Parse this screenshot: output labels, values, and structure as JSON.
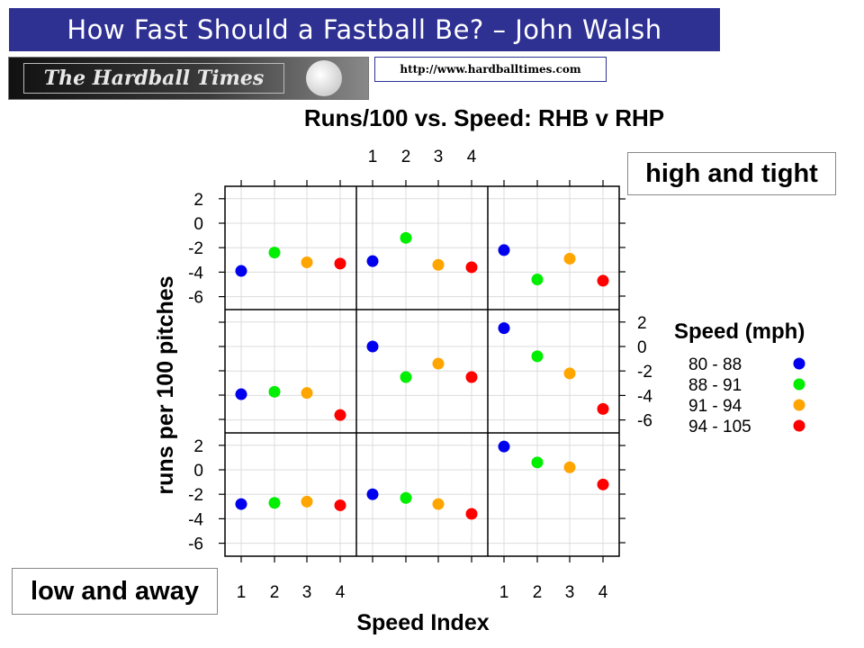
{
  "header": {
    "title": "How Fast Should a Fastball Be? – John Walsh"
  },
  "logo": {
    "text": "The Hardball Times"
  },
  "url": "http://www.hardballtimes.com",
  "callouts": {
    "high": "high and tight",
    "low": "low and away"
  },
  "chart_data": {
    "type": "scatter",
    "title": "Runs/100 vs. Speed: RHB v RHP",
    "xlabel": "Speed Index",
    "ylabel": "runs per 100 pitches",
    "x": [
      1,
      2,
      3,
      4
    ],
    "ylim": [
      -7,
      3
    ],
    "yticks": [
      2,
      0,
      -2,
      -4,
      -6
    ],
    "grid": true,
    "legend": {
      "title": "Speed (mph)",
      "position": "right",
      "entries": [
        {
          "label": "80 - 88",
          "color": "#0000ee"
        },
        {
          "label": "88 - 91",
          "color": "#00ee00"
        },
        {
          "label": "91 - 94",
          "color": "#ffa500"
        },
        {
          "label": "94 - 105",
          "color": "#ff0000"
        }
      ]
    },
    "panels": [
      {
        "row": 0,
        "col": 0,
        "values": [
          -3.9,
          -2.4,
          -3.2,
          -3.3
        ]
      },
      {
        "row": 0,
        "col": 1,
        "values": [
          -3.1,
          -1.2,
          -3.4,
          -3.6
        ]
      },
      {
        "row": 0,
        "col": 2,
        "values": [
          -2.2,
          -4.6,
          -2.9,
          -4.7
        ]
      },
      {
        "row": 1,
        "col": 0,
        "values": [
          -3.9,
          -3.7,
          -3.8,
          -5.6
        ]
      },
      {
        "row": 1,
        "col": 1,
        "values": [
          0.0,
          -2.5,
          -1.4,
          -2.5
        ]
      },
      {
        "row": 1,
        "col": 2,
        "values": [
          1.5,
          -0.8,
          -2.2,
          -5.1
        ]
      },
      {
        "row": 2,
        "col": 0,
        "values": [
          -2.8,
          -2.7,
          -2.6,
          -2.9
        ]
      },
      {
        "row": 2,
        "col": 1,
        "values": [
          -2.0,
          -2.3,
          -2.8,
          -3.6
        ]
      },
      {
        "row": 2,
        "col": 2,
        "values": [
          1.9,
          0.6,
          0.2,
          -1.2
        ]
      }
    ]
  }
}
